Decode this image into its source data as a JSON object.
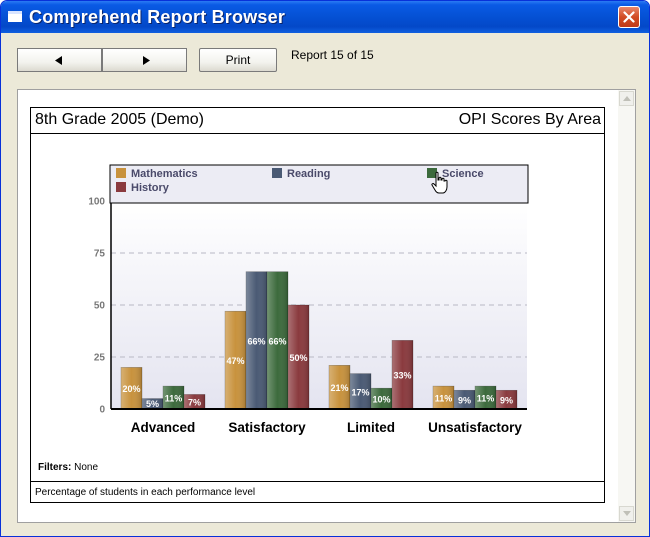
{
  "window": {
    "title": "Comprehend Report Browser"
  },
  "toolbar": {
    "print_label": "Print",
    "report_count": "Report 15 of 15"
  },
  "report": {
    "title": "8th Grade 2005 (Demo)",
    "subject": "OPI Scores By Area",
    "filters_label": "Filters:",
    "filters_value": "None",
    "footer": "Percentage of students in each performance level"
  },
  "chart_data": {
    "type": "bar",
    "categories": [
      "Advanced",
      "Satisfactory",
      "Limited",
      "Unsatisfactory"
    ],
    "series": [
      {
        "name": "Mathematics",
        "color": "#c8923d",
        "values": [
          20,
          47,
          21,
          11
        ],
        "labels": [
          "20%",
          "47%",
          "21%",
          "11%"
        ]
      },
      {
        "name": "Reading",
        "color": "#4a5a74",
        "values": [
          5,
          66,
          17,
          9
        ],
        "labels": [
          "5%",
          "66%",
          "17%",
          "9%"
        ]
      },
      {
        "name": "Science",
        "color": "#3c6a3c",
        "values": [
          11,
          66,
          10,
          11
        ],
        "labels": [
          "11%",
          "66%",
          "10%",
          "11%"
        ]
      },
      {
        "name": "History",
        "color": "#8a3a3e",
        "values": [
          7,
          50,
          33,
          9
        ],
        "labels": [
          "7%",
          "50%",
          "33%",
          "9%"
        ]
      }
    ],
    "yticks": [
      "0",
      "25",
      "50",
      "75",
      "100"
    ],
    "ylim": [
      0,
      100
    ],
    "grid": true,
    "legend_position": "top"
  }
}
